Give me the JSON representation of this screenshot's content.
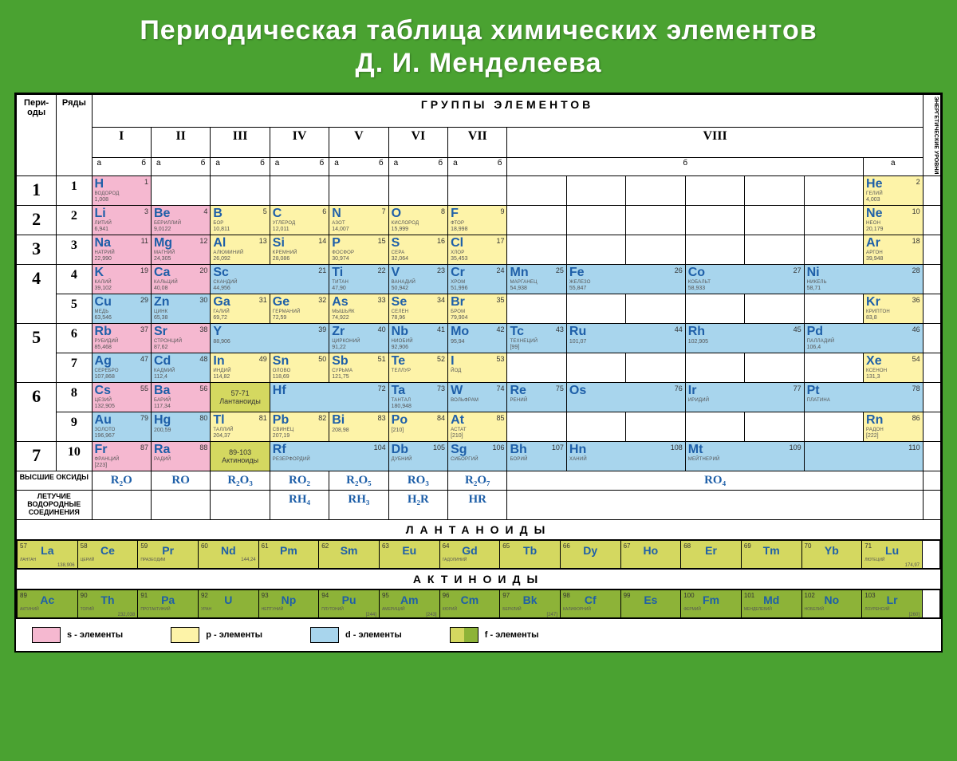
{
  "title_l1": "Периодическая таблица химических элементов",
  "title_l2": "Д. И. Менделеева",
  "hdr": {
    "periods": "Пери-\nоды",
    "rows": "Ряды",
    "groups": "ГРУППЫ ЭЛЕМЕНТОВ",
    "energy": "ЭНЕРГЕТИЧЕСКИЕ УРОВНИ",
    "a": "а",
    "b": "б"
  },
  "groups": [
    "I",
    "II",
    "III",
    "IV",
    "V",
    "VI",
    "VII",
    "VIII"
  ],
  "colors": {
    "s": "#f5b8d0",
    "p": "#fdf3a8",
    "d": "#a8d5ed",
    "f1": "#d4d860",
    "f2": "#8db338",
    "bg": "#4aa231",
    "border": "#000000",
    "sym": "#1e5fa8"
  },
  "legend": {
    "s": "s - элементы",
    "p": "p - элементы",
    "d": "d - элементы",
    "f": "f - элементы"
  },
  "lanth_label": "57-71 Лантаноиды",
  "act_label": "89-103 Актиноиды",
  "lanth_title": "ЛАНТАНОИДЫ",
  "act_title": "АКТИНОИДЫ",
  "oxides": {
    "label": "ВЫСШИЕ ОКСИДЫ",
    "v": [
      "R₂O",
      "RO",
      "R₂O₃",
      "RO₂",
      "R₂O₅",
      "RO₃",
      "R₂O₇",
      "RO₄"
    ]
  },
  "hydrides": {
    "label": "ЛЕТУЧИЕ ВОДОРОДНЫЕ СОЕДИНЕНИЯ",
    "v": [
      "",
      "",
      "",
      "RH₄",
      "RH₃",
      "H₂R",
      "HR",
      ""
    ]
  },
  "rows": [
    {
      "p": "1",
      "r": "1",
      "cells": [
        {
          "z": 1,
          "s": "H",
          "n": "ВОДОРОД",
          "m": "1,008",
          "c": "s",
          "col": 0
        },
        {
          "z": 2,
          "s": "He",
          "n": "ГЕЛИЙ",
          "m": "4,003",
          "c": "p",
          "col": 13
        }
      ]
    },
    {
      "p": "2",
      "r": "2",
      "cells": [
        {
          "z": 3,
          "s": "Li",
          "n": "ЛИТИЙ",
          "m": "6,941",
          "c": "s",
          "col": 0
        },
        {
          "z": 4,
          "s": "Be",
          "n": "БЕРИЛЛИЙ",
          "m": "9,0122",
          "c": "s",
          "col": 1
        },
        {
          "z": 5,
          "s": "B",
          "n": "БОР",
          "m": "10,811",
          "c": "p",
          "col": 2
        },
        {
          "z": 6,
          "s": "C",
          "n": "УГЛЕРОД",
          "m": "12,011",
          "c": "p",
          "col": 3
        },
        {
          "z": 7,
          "s": "N",
          "n": "АЗОТ",
          "m": "14,007",
          "c": "p",
          "col": 4
        },
        {
          "z": 8,
          "s": "O",
          "n": "КИСЛОРОД",
          "m": "15,999",
          "c": "p",
          "col": 5
        },
        {
          "z": 9,
          "s": "F",
          "n": "ФТОР",
          "m": "18,998",
          "c": "p",
          "col": 6
        },
        {
          "z": 10,
          "s": "Ne",
          "n": "НЕОН",
          "m": "20,179",
          "c": "p",
          "col": 13
        }
      ]
    },
    {
      "p": "3",
      "r": "3",
      "cells": [
        {
          "z": 11,
          "s": "Na",
          "n": "НАТРИЙ",
          "m": "22,990",
          "c": "s",
          "col": 0
        },
        {
          "z": 12,
          "s": "Mg",
          "n": "МАГНИЙ",
          "m": "24,305",
          "c": "s",
          "col": 1
        },
        {
          "z": 13,
          "s": "Al",
          "n": "АЛЮМИНИЙ",
          "m": "26,092",
          "c": "p",
          "col": 2
        },
        {
          "z": 14,
          "s": "Si",
          "n": "КРЕМНИЙ",
          "m": "28,086",
          "c": "p",
          "col": 3
        },
        {
          "z": 15,
          "s": "P",
          "n": "ФОСФОР",
          "m": "30,974",
          "c": "p",
          "col": 4
        },
        {
          "z": 16,
          "s": "S",
          "n": "СЕРА",
          "m": "32,064",
          "c": "p",
          "col": 5
        },
        {
          "z": 17,
          "s": "Cl",
          "n": "ХЛОР",
          "m": "35,453",
          "c": "p",
          "col": 6
        },
        {
          "z": 18,
          "s": "Ar",
          "n": "АРГОН",
          "m": "39,948",
          "c": "p",
          "col": 13
        }
      ]
    },
    {
      "p": "4",
      "r": "4",
      "cells": [
        {
          "z": 19,
          "s": "K",
          "n": "КАЛИЙ",
          "m": "39,102",
          "c": "s",
          "col": 0
        },
        {
          "z": 20,
          "s": "Ca",
          "n": "КАЛЬЦИЙ",
          "m": "40,08",
          "c": "s",
          "col": 1
        },
        {
          "z": 21,
          "s": "Sc",
          "n": "СКАНДИЙ",
          "m": "44,956",
          "c": "d",
          "col": 2,
          "w": 2
        },
        {
          "z": 22,
          "s": "Ti",
          "n": "ТИТАН",
          "m": "47,90",
          "c": "d",
          "col": 4,
          "w": 1
        },
        {
          "z": 23,
          "s": "V",
          "n": "ВАНАДИЙ",
          "m": "50,942",
          "c": "d",
          "col": 5,
          "w": 1
        },
        {
          "z": 24,
          "s": "Cr",
          "n": "ХРОМ",
          "m": "51,996",
          "c": "d",
          "col": 6,
          "w": 1
        },
        {
          "z": 25,
          "s": "Mn",
          "n": "МАРГАНЕЦ",
          "m": "54,938",
          "c": "d",
          "col": 7,
          "w": 1
        },
        {
          "z": 26,
          "s": "Fe",
          "n": "ЖЕЛЕЗО",
          "m": "55,847",
          "c": "d",
          "col": 8,
          "w": 2
        },
        {
          "z": 27,
          "s": "Co",
          "n": "КОБАЛЬТ",
          "m": "58,933",
          "c": "d",
          "col": 10,
          "w": 2
        },
        {
          "z": 28,
          "s": "Ni",
          "n": "НИКЕЛЬ",
          "m": "58,71",
          "c": "d",
          "col": 12,
          "w": 2
        }
      ]
    },
    {
      "p": "",
      "r": "5",
      "cells": [
        {
          "z": 29,
          "s": "Cu",
          "n": "МЕДЬ",
          "m": "63,546",
          "c": "d",
          "col": 0
        },
        {
          "z": 30,
          "s": "Zn",
          "n": "ЦИНК",
          "m": "65,38",
          "c": "d",
          "col": 1
        },
        {
          "z": 31,
          "s": "Ga",
          "n": "ГАЛИЙ",
          "m": "69,72",
          "c": "p",
          "col": 2
        },
        {
          "z": 32,
          "s": "Ge",
          "n": "ГЕРМАНИЙ",
          "m": "72,59",
          "c": "p",
          "col": 3
        },
        {
          "z": 33,
          "s": "As",
          "n": "МЫШЬЯК",
          "m": "74,922",
          "c": "p",
          "col": 4
        },
        {
          "z": 34,
          "s": "Se",
          "n": "СЕЛЕН",
          "m": "78,96",
          "c": "p",
          "col": 5
        },
        {
          "z": 35,
          "s": "Br",
          "n": "БРОМ",
          "m": "79,904",
          "c": "p",
          "col": 6
        },
        {
          "z": 36,
          "s": "Kr",
          "n": "КРИПТОН",
          "m": "83,8",
          "c": "p",
          "col": 13
        }
      ]
    },
    {
      "p": "5",
      "r": "6",
      "cells": [
        {
          "z": 37,
          "s": "Rb",
          "n": "РУБИДИЙ",
          "m": "85,468",
          "c": "s",
          "col": 0
        },
        {
          "z": 38,
          "s": "Sr",
          "n": "СТРОНЦИЙ",
          "m": "87,62",
          "c": "s",
          "col": 1
        },
        {
          "z": 39,
          "s": "Y",
          "n": "",
          "m": "88,906",
          "c": "d",
          "col": 2,
          "w": 2
        },
        {
          "z": 40,
          "s": "Zr",
          "n": "ЦИРКОНИЙ",
          "m": "91,22",
          "c": "d",
          "col": 4,
          "w": 1
        },
        {
          "z": 41,
          "s": "Nb",
          "n": "НИОБИЙ",
          "m": "92,906",
          "c": "d",
          "col": 5,
          "w": 1
        },
        {
          "z": 42,
          "s": "Mo",
          "n": "",
          "m": "95,94",
          "c": "d",
          "col": 6,
          "w": 1
        },
        {
          "z": 43,
          "s": "Tc",
          "n": "ТЕХНЕЦИЙ",
          "m": "[99]",
          "c": "d",
          "col": 7,
          "w": 1
        },
        {
          "z": 44,
          "s": "Ru",
          "n": "",
          "m": "101,07",
          "c": "d",
          "col": 8,
          "w": 2
        },
        {
          "z": 45,
          "s": "Rh",
          "n": "",
          "m": "102,905",
          "c": "d",
          "col": 10,
          "w": 2
        },
        {
          "z": 46,
          "s": "Pd",
          "n": "ПАЛЛАДИЙ",
          "m": "106,4",
          "c": "d",
          "col": 12,
          "w": 2
        }
      ]
    },
    {
      "p": "",
      "r": "7",
      "cells": [
        {
          "z": 47,
          "s": "Ag",
          "n": "СЕРЕБРО",
          "m": "107,868",
          "c": "d",
          "col": 0
        },
        {
          "z": 48,
          "s": "Cd",
          "n": "КАДМИЙ",
          "m": "112,4",
          "c": "d",
          "col": 1
        },
        {
          "z": 49,
          "s": "In",
          "n": "ИНДИЙ",
          "m": "114,82",
          "c": "p",
          "col": 2
        },
        {
          "z": 50,
          "s": "Sn",
          "n": "ОЛОВО",
          "m": "118,69",
          "c": "p",
          "col": 3
        },
        {
          "z": 51,
          "s": "Sb",
          "n": "СУРЬМА",
          "m": "121,75",
          "c": "p",
          "col": 4
        },
        {
          "z": 52,
          "s": "Te",
          "n": "ТЕЛЛУР",
          "m": "",
          "c": "p",
          "col": 5
        },
        {
          "z": 53,
          "s": "I",
          "n": "ЙОД",
          "m": "",
          "c": "p",
          "col": 6
        },
        {
          "z": 54,
          "s": "Xe",
          "n": "КСЕНОН",
          "m": "131,3",
          "c": "p",
          "col": 13
        }
      ]
    },
    {
      "p": "6",
      "r": "8",
      "cells": [
        {
          "z": 55,
          "s": "Cs",
          "n": "ЦЕЗИЙ",
          "m": "132,905",
          "c": "s",
          "col": 0
        },
        {
          "z": 56,
          "s": "Ba",
          "n": "БАРИЙ",
          "m": "117,34",
          "c": "s",
          "col": 1
        },
        {
          "lan": true,
          "lbl": "lanth_label",
          "col": 2,
          "w": 1
        },
        {
          "z": 72,
          "s": "Hf",
          "n": "",
          "m": "",
          "c": "d",
          "col": 3,
          "w": 2
        },
        {
          "z": 73,
          "s": "Ta",
          "n": "ТАНТАЛ",
          "m": "180,948",
          "c": "d",
          "col": 5,
          "w": 1
        },
        {
          "z": 74,
          "s": "W",
          "n": "ВОЛЬФРАМ",
          "m": "",
          "c": "d",
          "col": 6,
          "w": 1
        },
        {
          "z": 75,
          "s": "Re",
          "n": "РЕНИЙ",
          "m": "",
          "c": "d",
          "col": 7,
          "w": 1
        },
        {
          "z": 76,
          "s": "Os",
          "n": "",
          "m": "",
          "c": "d",
          "col": 8,
          "w": 2
        },
        {
          "z": 77,
          "s": "Ir",
          "n": "ИРИДИЙ",
          "m": "",
          "c": "d",
          "col": 10,
          "w": 2
        },
        {
          "z": 78,
          "s": "Pt",
          "n": "ПЛАТИНА",
          "m": "",
          "c": "d",
          "col": 12,
          "w": 2
        }
      ]
    },
    {
      "p": "",
      "r": "9",
      "cells": [
        {
          "z": 79,
          "s": "Au",
          "n": "ЗОЛОТО",
          "m": "196,967",
          "c": "d",
          "col": 0
        },
        {
          "z": 80,
          "s": "Hg",
          "n": "",
          "m": "200,59",
          "c": "d",
          "col": 1
        },
        {
          "z": 81,
          "s": "Tl",
          "n": "ТАЛЛИЙ",
          "m": "204,37",
          "c": "p",
          "col": 2
        },
        {
          "z": 82,
          "s": "Pb",
          "n": "СВИНЕЦ",
          "m": "207,19",
          "c": "p",
          "col": 3
        },
        {
          "z": 83,
          "s": "Bi",
          "n": "",
          "m": "208,98",
          "c": "p",
          "col": 4
        },
        {
          "z": 84,
          "s": "Po",
          "n": "",
          "m": "[210]",
          "c": "p",
          "col": 5
        },
        {
          "z": 85,
          "s": "At",
          "n": "АСТАТ",
          "m": "[210]",
          "c": "p",
          "col": 6
        },
        {
          "z": 86,
          "s": "Rn",
          "n": "РАДОН",
          "m": "[222]",
          "c": "p",
          "col": 13
        }
      ]
    },
    {
      "p": "7",
      "r": "10",
      "cells": [
        {
          "z": 87,
          "s": "Fr",
          "n": "ФРАНЦИЙ",
          "m": "[223]",
          "c": "s",
          "col": 0
        },
        {
          "z": 88,
          "s": "Ra",
          "n": "РАДИЙ",
          "m": "",
          "c": "s",
          "col": 1
        },
        {
          "lan": true,
          "lbl": "act_label",
          "col": 2,
          "w": 1,
          "c": "f2"
        },
        {
          "z": 104,
          "s": "Rf",
          "n": "РЕЗЕРФОРДИЙ",
          "m": "",
          "c": "d",
          "col": 3,
          "w": 2
        },
        {
          "z": 105,
          "s": "Db",
          "n": "ДУБНИЙ",
          "m": "",
          "c": "d",
          "col": 5,
          "w": 1
        },
        {
          "z": 106,
          "s": "Sg",
          "n": "СИБОРГИЙ",
          "m": "",
          "c": "d",
          "col": 6,
          "w": 1
        },
        {
          "z": 107,
          "s": "Bh",
          "n": "БОРИЙ",
          "m": "",
          "c": "d",
          "col": 7,
          "w": 1
        },
        {
          "z": 108,
          "s": "Hn",
          "n": "ХАНИЙ",
          "m": "",
          "c": "d",
          "col": 8,
          "w": 2
        },
        {
          "z": 109,
          "s": "Mt",
          "n": "МЕЙТНЕРИЙ",
          "m": "",
          "c": "d",
          "col": 10,
          "w": 2
        },
        {
          "z": 110,
          "s": "",
          "n": "",
          "m": "",
          "c": "d",
          "col": 12,
          "w": 2
        }
      ]
    }
  ],
  "lanth": [
    {
      "z": 57,
      "s": "La",
      "n": "ЛАНТАН",
      "m": "138,906"
    },
    {
      "z": 58,
      "s": "Ce",
      "n": "ЦЕРИЙ",
      "m": ""
    },
    {
      "z": 59,
      "s": "Pr",
      "n": "ПРАЗЕОДИМ",
      "m": ""
    },
    {
      "z": 60,
      "s": "Nd",
      "n": "",
      "m": "144,24"
    },
    {
      "z": 61,
      "s": "Pm",
      "n": "",
      "m": ""
    },
    {
      "z": 62,
      "s": "Sm",
      "n": "",
      "m": ""
    },
    {
      "z": 63,
      "s": "Eu",
      "n": "",
      "m": ""
    },
    {
      "z": 64,
      "s": "Gd",
      "n": "ГАДОЛИНИЙ",
      "m": ""
    },
    {
      "z": 65,
      "s": "Tb",
      "n": "",
      "m": ""
    },
    {
      "z": 66,
      "s": "Dy",
      "n": "",
      "m": ""
    },
    {
      "z": 67,
      "s": "Ho",
      "n": "",
      "m": ""
    },
    {
      "z": 68,
      "s": "Er",
      "n": "",
      "m": ""
    },
    {
      "z": 69,
      "s": "Tm",
      "n": "",
      "m": ""
    },
    {
      "z": 70,
      "s": "Yb",
      "n": "",
      "m": ""
    },
    {
      "z": 71,
      "s": "Lu",
      "n": "ЛЮТЕЦИЙ",
      "m": "174,97"
    }
  ],
  "act": [
    {
      "z": 89,
      "s": "Ac",
      "n": "АКТИНИЙ",
      "m": ""
    },
    {
      "z": 90,
      "s": "Th",
      "n": "ТОРИЙ",
      "m": "232,038"
    },
    {
      "z": 91,
      "s": "Pa",
      "n": "ПРОТАКТИНИЙ",
      "m": ""
    },
    {
      "z": 92,
      "s": "U",
      "n": "УРАН",
      "m": ""
    },
    {
      "z": 93,
      "s": "Np",
      "n": "НЕПТУНИЙ",
      "m": ""
    },
    {
      "z": 94,
      "s": "Pu",
      "n": "ПЛУТОНИЙ",
      "m": "[244]"
    },
    {
      "z": 95,
      "s": "Am",
      "n": "АМЕРИЦИЙ",
      "m": "[243]"
    },
    {
      "z": 96,
      "s": "Cm",
      "n": "КЮРИЙ",
      "m": ""
    },
    {
      "z": 97,
      "s": "Bk",
      "n": "БЕРКЛИЙ",
      "m": "[247]"
    },
    {
      "z": 98,
      "s": "Cf",
      "n": "КАЛИФОРНИЙ",
      "m": ""
    },
    {
      "z": 99,
      "s": "Es",
      "n": "",
      "m": ""
    },
    {
      "z": 100,
      "s": "Fm",
      "n": "ФЕРМИЙ",
      "m": ""
    },
    {
      "z": 101,
      "s": "Md",
      "n": "МЕНДЕЛЕВИЙ",
      "m": ""
    },
    {
      "z": 102,
      "s": "No",
      "n": "НОБЕЛИЙ",
      "m": ""
    },
    {
      "z": 103,
      "s": "Lr",
      "n": "ЛОУРЕНСИЙ",
      "m": "[260]"
    }
  ]
}
